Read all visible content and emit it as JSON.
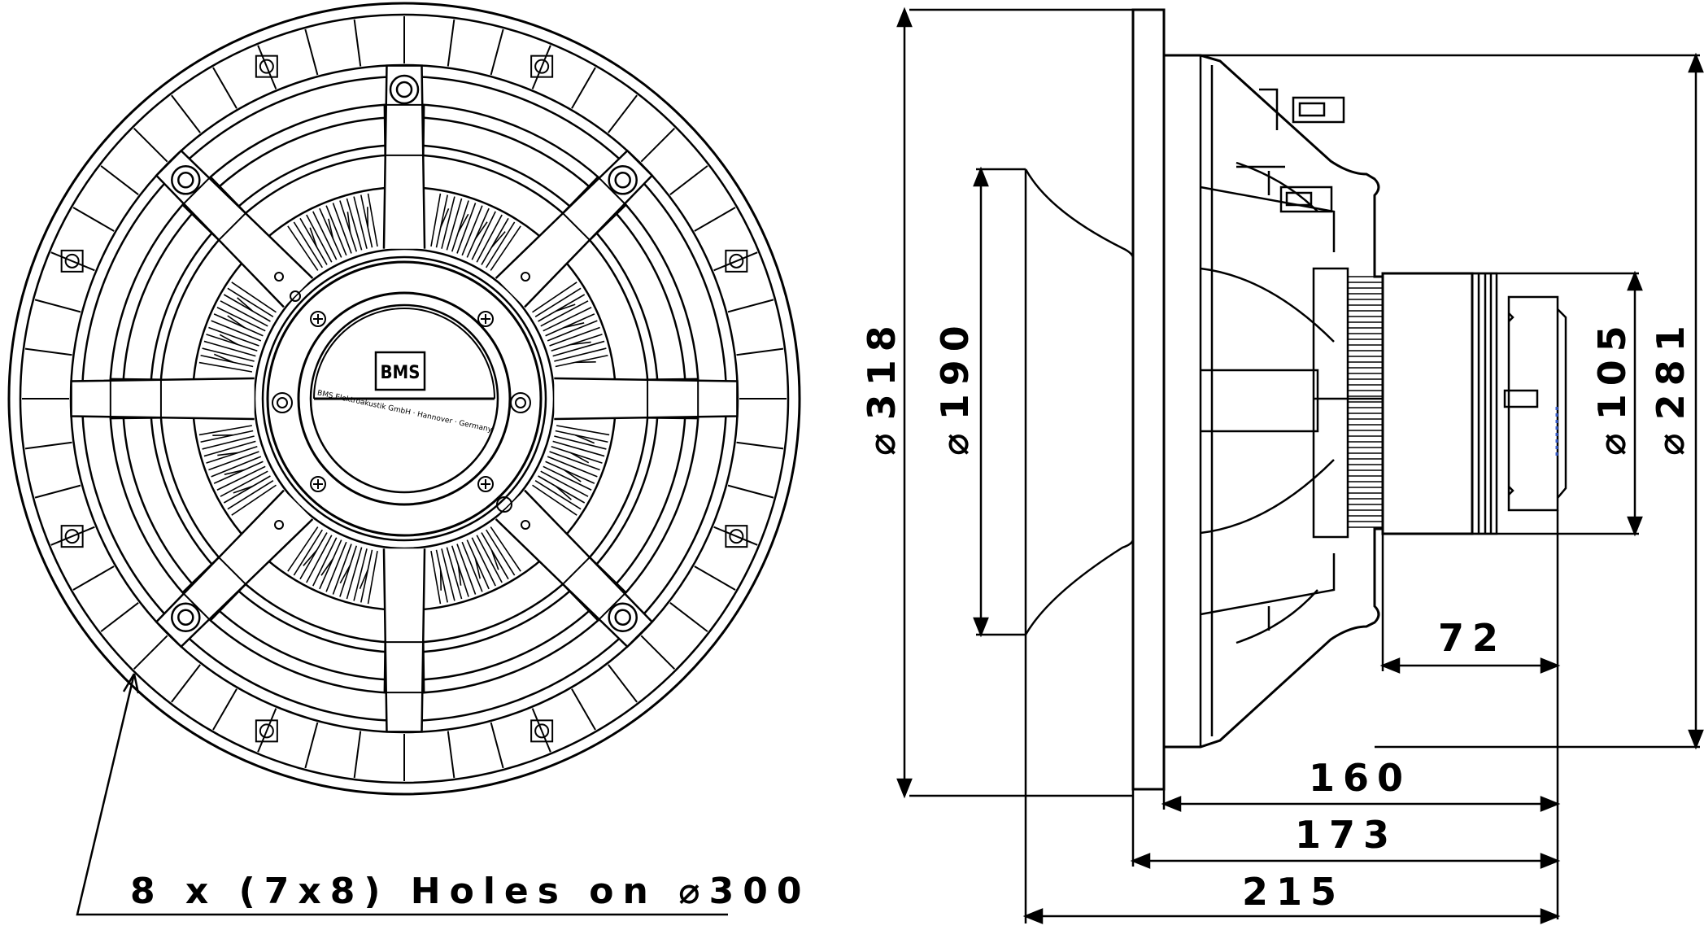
{
  "front_view": {
    "logo_text": "BMS",
    "plate_inscription": "BMS Elektroakustik GmbH · Hannover · Germany",
    "holes_note": {
      "prefix": "8  x  (7x8)  Holes  on  ",
      "diameter_symbol": "⌀",
      "value": "300"
    }
  },
  "side_view": {
    "dim_318": {
      "symbol": "⌀",
      "value": "318"
    },
    "dim_190": {
      "symbol": "⌀",
      "value": "190"
    },
    "dim_105": {
      "symbol": "⌀",
      "value": "105"
    },
    "dim_281": {
      "symbol": "⌀",
      "value": "281"
    },
    "dim_72": "72",
    "dim_160": "160",
    "dim_173": "173",
    "dim_215": "215"
  },
  "colors": {
    "line": "#000000",
    "background": "#ffffff",
    "accent_blue": "#3a5fcd"
  }
}
